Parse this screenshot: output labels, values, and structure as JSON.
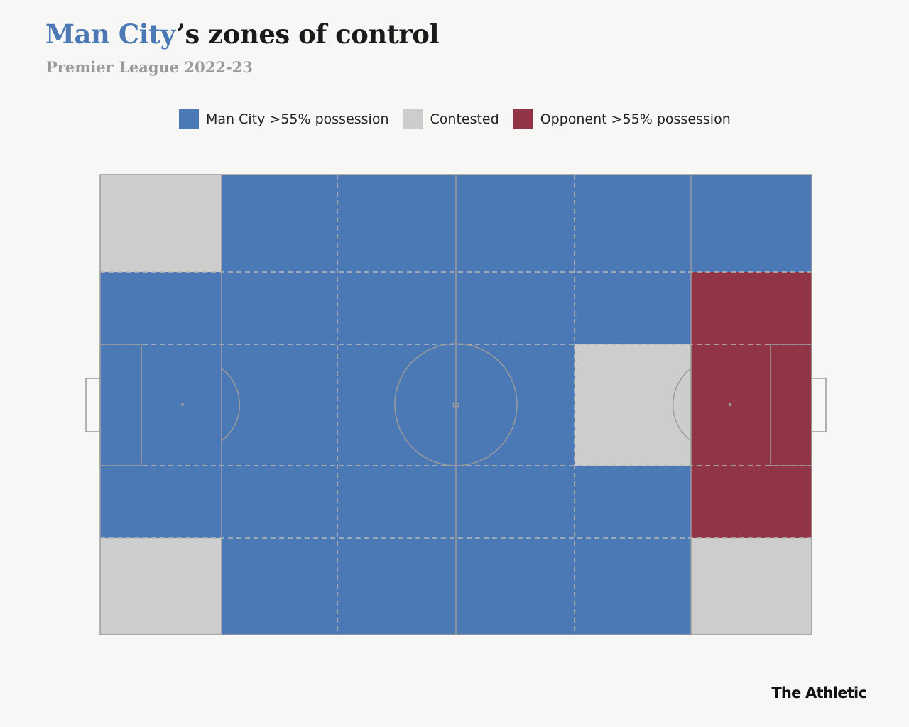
{
  "header": {
    "title_highlight": "Man City",
    "title_rest": "’s zones of control",
    "subtitle": "Premier League 2022-23"
  },
  "legend": [
    {
      "key": "city",
      "label": "Man City >55% possession",
      "color": "#4a79b6"
    },
    {
      "key": "contested",
      "label": "Contested",
      "color": "#cdcdcd"
    },
    {
      "key": "opponent",
      "label": "Opponent >55% possession",
      "color": "#913546"
    }
  ],
  "colors": {
    "background": "#f7f7f5",
    "pitch_lines": "#9b9b9b",
    "zone_dividers": "#b9b9b9"
  },
  "chart_data": {
    "type": "heatmap",
    "columns": 6,
    "rows": 5,
    "zones": [
      [
        "contested",
        "city",
        "city",
        "city",
        "city",
        "city"
      ],
      [
        "city",
        "city",
        "city",
        "city",
        "city",
        "opponent"
      ],
      [
        "city",
        "city",
        "city",
        "city",
        "contested",
        "opponent"
      ],
      [
        "city",
        "city",
        "city",
        "city",
        "city",
        "opponent"
      ],
      [
        "contested",
        "city",
        "city",
        "city",
        "city",
        "contested"
      ]
    ]
  },
  "footer": {
    "brand": "The Athletic"
  }
}
